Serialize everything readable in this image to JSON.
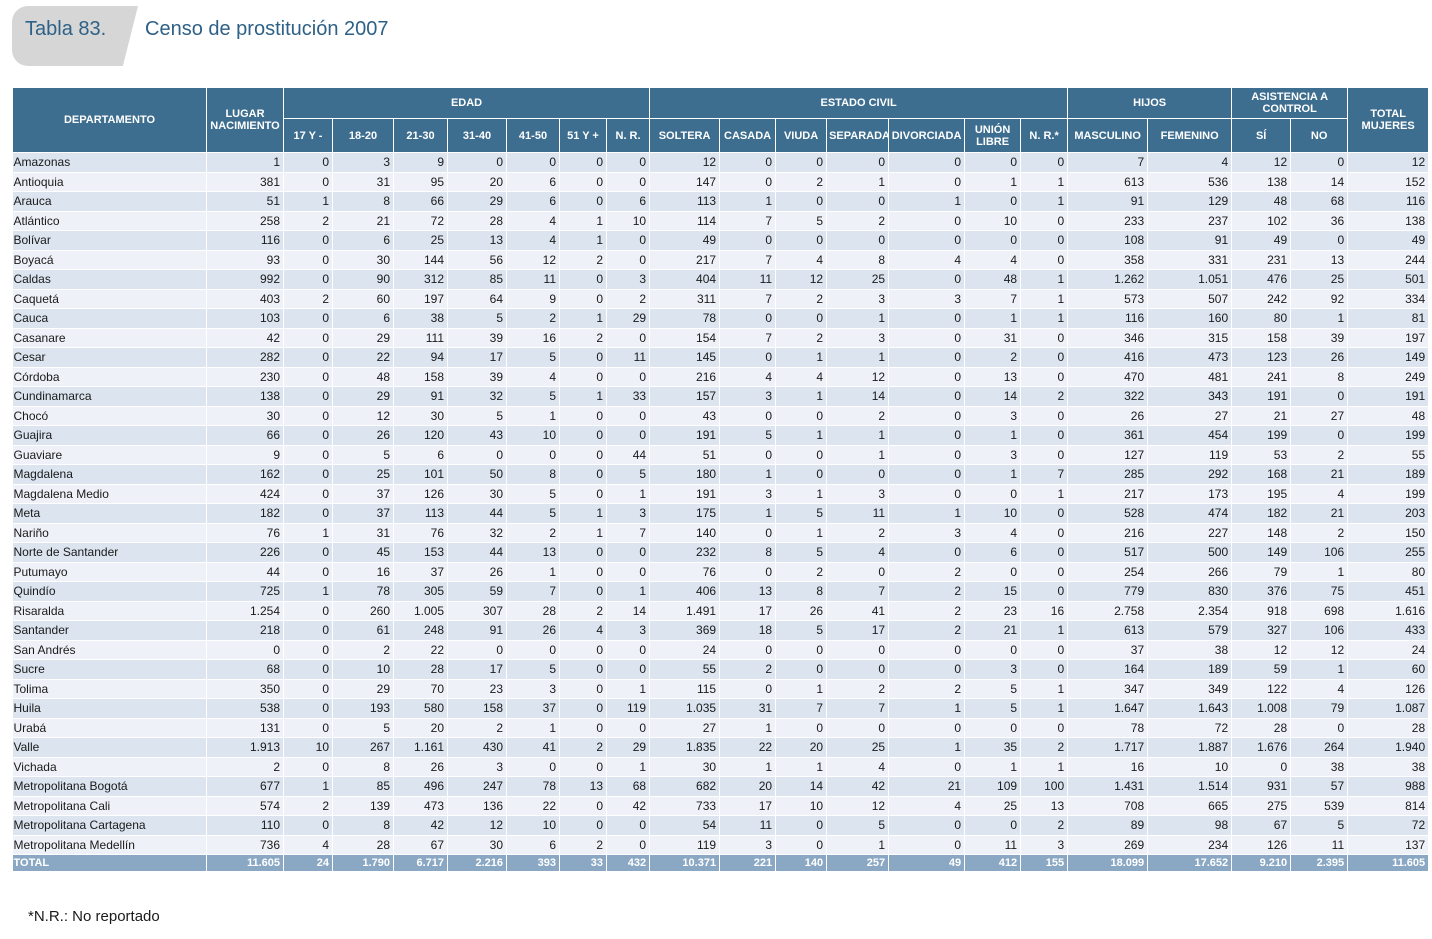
{
  "header": {
    "tab_label": "Tabla 83.",
    "title": "Censo de prostitución 2007"
  },
  "table": {
    "group_headers": {
      "departamento": "DEPARTAMENTO",
      "lugar_nacimiento": "LUGAR NACIMIENTO",
      "edad": "EDAD",
      "estado_civil": "ESTADO CIVIL",
      "hijos": "HIJOS",
      "asistencia": "ASISTENCIA A CONTROL",
      "total": "TOTAL MUJERES"
    },
    "sub_headers": [
      "17 Y -",
      "18-20",
      "21-30",
      "31-40",
      "41-50",
      "51 Y +",
      "N. R.",
      "SOLTERA",
      "CASADA",
      "VIUDA",
      "SEPARADA",
      "DIVORCIADA",
      "UNIÓN LIBRE",
      "N. R.*",
      "MASCULINO",
      "FEMENINO",
      "SÍ",
      "NO"
    ],
    "rows": [
      [
        "Amazonas",
        "1",
        "0",
        "3",
        "9",
        "0",
        "0",
        "0",
        "0",
        "12",
        "0",
        "0",
        "0",
        "0",
        "0",
        "0",
        "7",
        "4",
        "12",
        "0",
        "12"
      ],
      [
        "Antioquia",
        "381",
        "0",
        "31",
        "95",
        "20",
        "6",
        "0",
        "0",
        "147",
        "0",
        "2",
        "1",
        "0",
        "1",
        "1",
        "613",
        "536",
        "138",
        "14",
        "152"
      ],
      [
        "Arauca",
        "51",
        "1",
        "8",
        "66",
        "29",
        "6",
        "0",
        "6",
        "113",
        "1",
        "0",
        "0",
        "1",
        "0",
        "1",
        "91",
        "129",
        "48",
        "68",
        "116"
      ],
      [
        "Atlántico",
        "258",
        "2",
        "21",
        "72",
        "28",
        "4",
        "1",
        "10",
        "114",
        "7",
        "5",
        "2",
        "0",
        "10",
        "0",
        "233",
        "237",
        "102",
        "36",
        "138"
      ],
      [
        "Bolívar",
        "116",
        "0",
        "6",
        "25",
        "13",
        "4",
        "1",
        "0",
        "49",
        "0",
        "0",
        "0",
        "0",
        "0",
        "0",
        "108",
        "91",
        "49",
        "0",
        "49"
      ],
      [
        "Boyacá",
        "93",
        "0",
        "30",
        "144",
        "56",
        "12",
        "2",
        "0",
        "217",
        "7",
        "4",
        "8",
        "4",
        "4",
        "0",
        "358",
        "331",
        "231",
        "13",
        "244"
      ],
      [
        "Caldas",
        "992",
        "0",
        "90",
        "312",
        "85",
        "11",
        "0",
        "3",
        "404",
        "11",
        "12",
        "25",
        "0",
        "48",
        "1",
        "1.262",
        "1.051",
        "476",
        "25",
        "501"
      ],
      [
        "Caquetá",
        "403",
        "2",
        "60",
        "197",
        "64",
        "9",
        "0",
        "2",
        "311",
        "7",
        "2",
        "3",
        "3",
        "7",
        "1",
        "573",
        "507",
        "242",
        "92",
        "334"
      ],
      [
        "Cauca",
        "103",
        "0",
        "6",
        "38",
        "5",
        "2",
        "1",
        "29",
        "78",
        "0",
        "0",
        "1",
        "0",
        "1",
        "1",
        "116",
        "160",
        "80",
        "1",
        "81"
      ],
      [
        "Casanare",
        "42",
        "0",
        "29",
        "111",
        "39",
        "16",
        "2",
        "0",
        "154",
        "7",
        "2",
        "3",
        "0",
        "31",
        "0",
        "346",
        "315",
        "158",
        "39",
        "197"
      ],
      [
        "Cesar",
        "282",
        "0",
        "22",
        "94",
        "17",
        "5",
        "0",
        "11",
        "145",
        "0",
        "1",
        "1",
        "0",
        "2",
        "0",
        "416",
        "473",
        "123",
        "26",
        "149"
      ],
      [
        "Córdoba",
        "230",
        "0",
        "48",
        "158",
        "39",
        "4",
        "0",
        "0",
        "216",
        "4",
        "4",
        "12",
        "0",
        "13",
        "0",
        "470",
        "481",
        "241",
        "8",
        "249"
      ],
      [
        "Cundinamarca",
        "138",
        "0",
        "29",
        "91",
        "32",
        "5",
        "1",
        "33",
        "157",
        "3",
        "1",
        "14",
        "0",
        "14",
        "2",
        "322",
        "343",
        "191",
        "0",
        "191"
      ],
      [
        "Chocó",
        "30",
        "0",
        "12",
        "30",
        "5",
        "1",
        "0",
        "0",
        "43",
        "0",
        "0",
        "2",
        "0",
        "3",
        "0",
        "26",
        "27",
        "21",
        "27",
        "48"
      ],
      [
        "Guajira",
        "66",
        "0",
        "26",
        "120",
        "43",
        "10",
        "0",
        "0",
        "191",
        "5",
        "1",
        "1",
        "0",
        "1",
        "0",
        "361",
        "454",
        "199",
        "0",
        "199"
      ],
      [
        "Guaviare",
        "9",
        "0",
        "5",
        "6",
        "0",
        "0",
        "0",
        "44",
        "51",
        "0",
        "0",
        "1",
        "0",
        "3",
        "0",
        "127",
        "119",
        "53",
        "2",
        "55"
      ],
      [
        "Magdalena",
        "162",
        "0",
        "25",
        "101",
        "50",
        "8",
        "0",
        "5",
        "180",
        "1",
        "0",
        "0",
        "0",
        "1",
        "7",
        "285",
        "292",
        "168",
        "21",
        "189"
      ],
      [
        "Magdalena Medio",
        "424",
        "0",
        "37",
        "126",
        "30",
        "5",
        "0",
        "1",
        "191",
        "3",
        "1",
        "3",
        "0",
        "0",
        "1",
        "217",
        "173",
        "195",
        "4",
        "199"
      ],
      [
        "Meta",
        "182",
        "0",
        "37",
        "113",
        "44",
        "5",
        "1",
        "3",
        "175",
        "1",
        "5",
        "11",
        "1",
        "10",
        "0",
        "528",
        "474",
        "182",
        "21",
        "203"
      ],
      [
        "Nariño",
        "76",
        "1",
        "31",
        "76",
        "32",
        "2",
        "1",
        "7",
        "140",
        "0",
        "1",
        "2",
        "3",
        "4",
        "0",
        "216",
        "227",
        "148",
        "2",
        "150"
      ],
      [
        "Norte de Santander",
        "226",
        "0",
        "45",
        "153",
        "44",
        "13",
        "0",
        "0",
        "232",
        "8",
        "5",
        "4",
        "0",
        "6",
        "0",
        "517",
        "500",
        "149",
        "106",
        "255"
      ],
      [
        "Putumayo",
        "44",
        "0",
        "16",
        "37",
        "26",
        "1",
        "0",
        "0",
        "76",
        "0",
        "2",
        "0",
        "2",
        "0",
        "0",
        "254",
        "266",
        "79",
        "1",
        "80"
      ],
      [
        "Quindío",
        "725",
        "1",
        "78",
        "305",
        "59",
        "7",
        "0",
        "1",
        "406",
        "13",
        "8",
        "7",
        "2",
        "15",
        "0",
        "779",
        "830",
        "376",
        "75",
        "451"
      ],
      [
        "Risaralda",
        "1.254",
        "0",
        "260",
        "1.005",
        "307",
        "28",
        "2",
        "14",
        "1.491",
        "17",
        "26",
        "41",
        "2",
        "23",
        "16",
        "2.758",
        "2.354",
        "918",
        "698",
        "1.616"
      ],
      [
        "Santander",
        "218",
        "0",
        "61",
        "248",
        "91",
        "26",
        "4",
        "3",
        "369",
        "18",
        "5",
        "17",
        "2",
        "21",
        "1",
        "613",
        "579",
        "327",
        "106",
        "433"
      ],
      [
        "San Andrés",
        "0",
        "0",
        "2",
        "22",
        "0",
        "0",
        "0",
        "0",
        "24",
        "0",
        "0",
        "0",
        "0",
        "0",
        "0",
        "37",
        "38",
        "12",
        "12",
        "24"
      ],
      [
        "Sucre",
        "68",
        "0",
        "10",
        "28",
        "17",
        "5",
        "0",
        "0",
        "55",
        "2",
        "0",
        "0",
        "0",
        "3",
        "0",
        "164",
        "189",
        "59",
        "1",
        "60"
      ],
      [
        "Tolima",
        "350",
        "0",
        "29",
        "70",
        "23",
        "3",
        "0",
        "1",
        "115",
        "0",
        "1",
        "2",
        "2",
        "5",
        "1",
        "347",
        "349",
        "122",
        "4",
        "126"
      ],
      [
        "Huila",
        "538",
        "0",
        "193",
        "580",
        "158",
        "37",
        "0",
        "119",
        "1.035",
        "31",
        "7",
        "7",
        "1",
        "5",
        "1",
        "1.647",
        "1.643",
        "1.008",
        "79",
        "1.087"
      ],
      [
        "Urabá",
        "131",
        "0",
        "5",
        "20",
        "2",
        "1",
        "0",
        "0",
        "27",
        "1",
        "0",
        "0",
        "0",
        "0",
        "0",
        "78",
        "72",
        "28",
        "0",
        "28"
      ],
      [
        "Valle",
        "1.913",
        "10",
        "267",
        "1.161",
        "430",
        "41",
        "2",
        "29",
        "1.835",
        "22",
        "20",
        "25",
        "1",
        "35",
        "2",
        "1.717",
        "1.887",
        "1.676",
        "264",
        "1.940"
      ],
      [
        "Vichada",
        "2",
        "0",
        "8",
        "26",
        "3",
        "0",
        "0",
        "1",
        "30",
        "1",
        "1",
        "4",
        "0",
        "1",
        "1",
        "16",
        "10",
        "0",
        "38",
        "38"
      ],
      [
        "Metropolitana Bogotá",
        "677",
        "1",
        "85",
        "496",
        "247",
        "78",
        "13",
        "68",
        "682",
        "20",
        "14",
        "42",
        "21",
        "109",
        "100",
        "1.431",
        "1.514",
        "931",
        "57",
        "988"
      ],
      [
        "Metropolitana Cali",
        "574",
        "2",
        "139",
        "473",
        "136",
        "22",
        "0",
        "42",
        "733",
        "17",
        "10",
        "12",
        "4",
        "25",
        "13",
        "708",
        "665",
        "275",
        "539",
        "814"
      ],
      [
        "Metropolitana Cartagena",
        "110",
        "0",
        "8",
        "42",
        "12",
        "10",
        "0",
        "0",
        "54",
        "11",
        "0",
        "5",
        "0",
        "0",
        "2",
        "89",
        "98",
        "67",
        "5",
        "72"
      ],
      [
        "Metropolitana Medellín",
        "736",
        "4",
        "28",
        "67",
        "30",
        "6",
        "2",
        "0",
        "119",
        "3",
        "0",
        "1",
        "0",
        "11",
        "3",
        "269",
        "234",
        "126",
        "11",
        "137"
      ]
    ],
    "total_row": [
      "TOTAL",
      "11.605",
      "24",
      "1.790",
      "6.717",
      "2.216",
      "393",
      "33",
      "432",
      "10.371",
      "221",
      "140",
      "257",
      "49",
      "412",
      "155",
      "18.099",
      "17.652",
      "9.210",
      "2.395",
      "11.605"
    ]
  },
  "footnote": "*N.R.: No reportado"
}
